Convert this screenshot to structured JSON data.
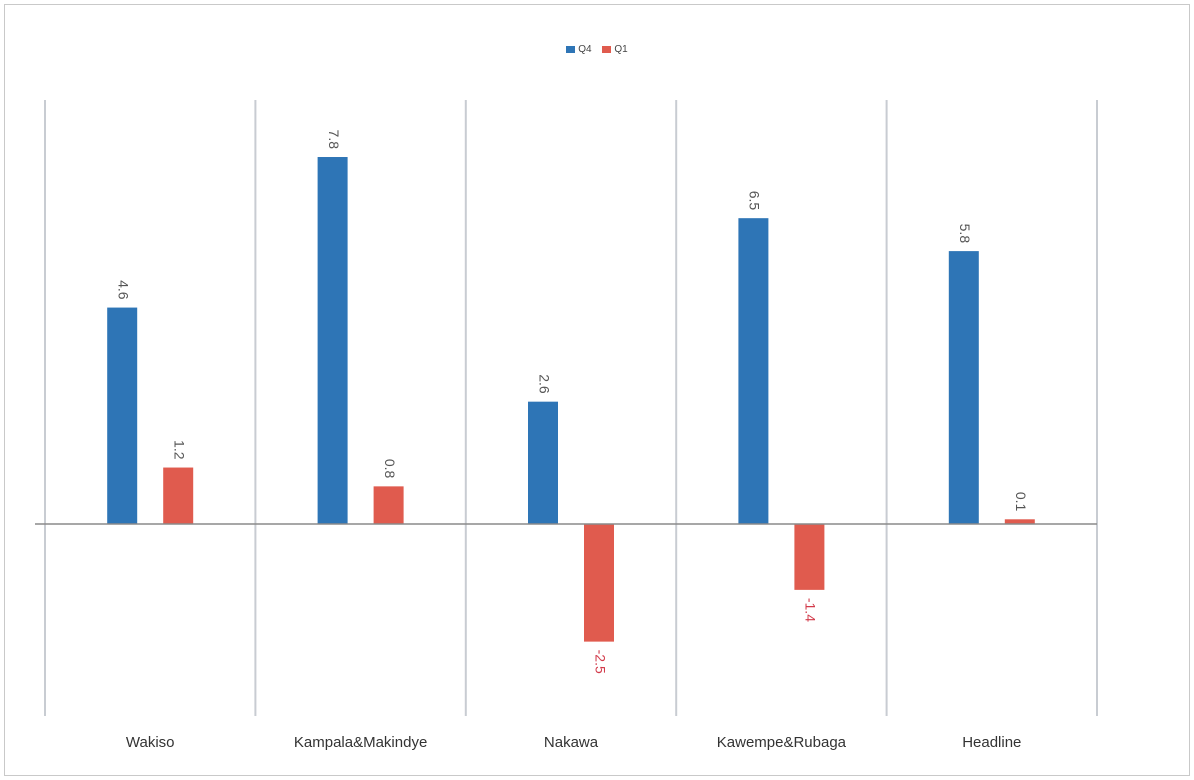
{
  "chart_data": {
    "type": "bar",
    "categories": [
      "Wakiso",
      "Kampala&Makindye",
      "Nakawa",
      "Kawempe&Rubaga",
      "Headline"
    ],
    "series": [
      {
        "name": "Q4",
        "color": "#2e75b6",
        "values": [
          4.6,
          7.8,
          2.6,
          6.5,
          5.8
        ]
      },
      {
        "name": "Q1",
        "color": "#e05b4e",
        "values": [
          1.2,
          0.8,
          -2.5,
          -1.4,
          0.1
        ]
      }
    ],
    "value_labels": {
      "Q4": [
        "4.6",
        "7.8",
        "2.6",
        "6.5",
        "5.8"
      ],
      "Q1": [
        "1.2",
        "0.8",
        "-2.5",
        "-1.4",
        "0.1"
      ]
    },
    "ylim": [
      -4.1,
      8.75
    ],
    "grid": "vertical category separators",
    "legend_position": "top-center",
    "title": "",
    "xlabel": "",
    "ylabel": ""
  }
}
